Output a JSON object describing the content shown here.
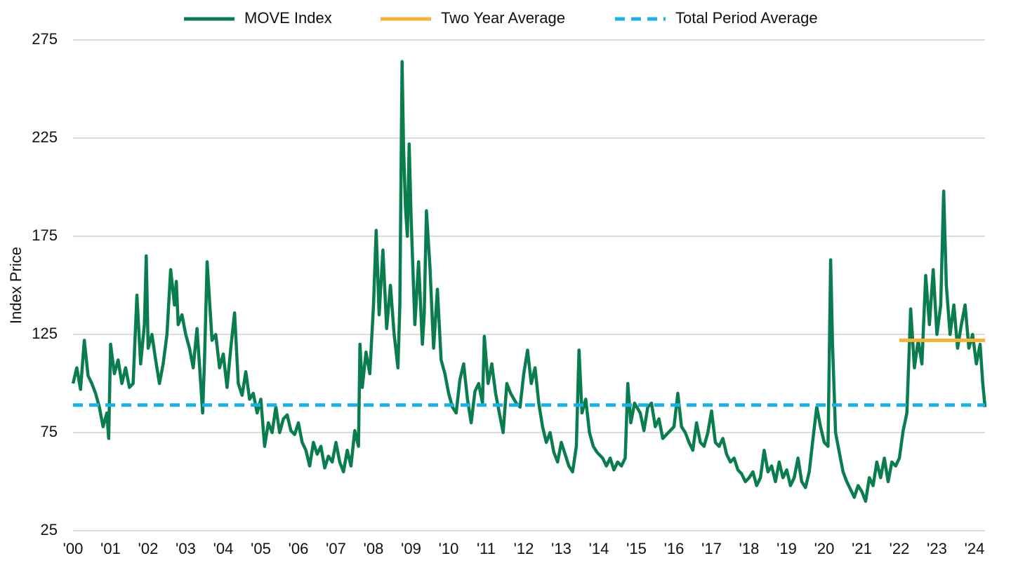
{
  "chart_data": {
    "type": "line",
    "y_label": "Index Price",
    "xlim": [
      2000,
      2024.28
    ],
    "xticks": [
      {
        "value": 2000,
        "label": "'00"
      },
      {
        "value": 2001,
        "label": "'01"
      },
      {
        "value": 2002,
        "label": "'02"
      },
      {
        "value": 2003,
        "label": "'03"
      },
      {
        "value": 2004,
        "label": "'04"
      },
      {
        "value": 2005,
        "label": "'05"
      },
      {
        "value": 2006,
        "label": "'06"
      },
      {
        "value": 2007,
        "label": "'07"
      },
      {
        "value": 2008,
        "label": "'08"
      },
      {
        "value": 2009,
        "label": "'09"
      },
      {
        "value": 2010,
        "label": "'10"
      },
      {
        "value": 2011,
        "label": "'11"
      },
      {
        "value": 2012,
        "label": "'12"
      },
      {
        "value": 2013,
        "label": "'13"
      },
      {
        "value": 2014,
        "label": "'14"
      },
      {
        "value": 2015,
        "label": "'15"
      },
      {
        "value": 2016,
        "label": "'16"
      },
      {
        "value": 2017,
        "label": "'17"
      },
      {
        "value": 2018,
        "label": "'18"
      },
      {
        "value": 2019,
        "label": "'19"
      },
      {
        "value": 2020,
        "label": "'20"
      },
      {
        "value": 2021,
        "label": "'21"
      },
      {
        "value": 2022,
        "label": "'22"
      },
      {
        "value": 2023,
        "label": "'23"
      },
      {
        "value": 2024,
        "label": "'24"
      }
    ],
    "ylim": [
      25,
      275
    ],
    "yticks": [
      25,
      75,
      125,
      175,
      225,
      275
    ],
    "grid": true,
    "legend": "top",
    "series": [
      {
        "name": "MOVE Index",
        "color": "#0a7d4f",
        "dashed": false,
        "x": [
          2000.0,
          2000.1,
          2000.2,
          2000.3,
          2000.4,
          2000.5,
          2000.6,
          2000.7,
          2000.8,
          2000.9,
          2000.95,
          2001.0,
          2001.1,
          2001.2,
          2001.3,
          2001.4,
          2001.5,
          2001.6,
          2001.7,
          2001.8,
          2001.9,
          2001.95,
          2002.0,
          2002.1,
          2002.2,
          2002.3,
          2002.4,
          2002.5,
          2002.6,
          2002.7,
          2002.75,
          2002.8,
          2002.9,
          2003.0,
          2003.1,
          2003.2,
          2003.3,
          2003.4,
          2003.45,
          2003.5,
          2003.57,
          2003.7,
          2003.8,
          2003.9,
          2004.0,
          2004.1,
          2004.2,
          2004.3,
          2004.4,
          2004.5,
          2004.6,
          2004.7,
          2004.8,
          2004.9,
          2005.0,
          2005.1,
          2005.2,
          2005.3,
          2005.4,
          2005.5,
          2005.6,
          2005.7,
          2005.8,
          2005.9,
          2006.0,
          2006.1,
          2006.2,
          2006.3,
          2006.4,
          2006.5,
          2006.6,
          2006.7,
          2006.8,
          2006.9,
          2007.0,
          2007.1,
          2007.2,
          2007.3,
          2007.4,
          2007.5,
          2007.6,
          2007.64,
          2007.7,
          2007.8,
          2007.9,
          2008.0,
          2008.07,
          2008.15,
          2008.25,
          2008.35,
          2008.45,
          2008.55,
          2008.65,
          2008.7,
          2008.76,
          2008.8,
          2008.85,
          2008.9,
          2008.95,
          2009.0,
          2009.1,
          2009.2,
          2009.3,
          2009.35,
          2009.41,
          2009.5,
          2009.6,
          2009.7,
          2009.8,
          2009.9,
          2010.0,
          2010.1,
          2010.2,
          2010.3,
          2010.4,
          2010.5,
          2010.6,
          2010.7,
          2010.8,
          2010.9,
          2010.95,
          2011.05,
          2011.15,
          2011.25,
          2011.35,
          2011.45,
          2011.55,
          2011.65,
          2011.8,
          2011.9,
          2012.0,
          2012.1,
          2012.2,
          2012.3,
          2012.4,
          2012.5,
          2012.6,
          2012.7,
          2012.8,
          2012.9,
          2013.0,
          2013.1,
          2013.2,
          2013.3,
          2013.4,
          2013.47,
          2013.55,
          2013.65,
          2013.75,
          2013.85,
          2013.95,
          2014.1,
          2014.2,
          2014.3,
          2014.4,
          2014.5,
          2014.6,
          2014.7,
          2014.77,
          2014.85,
          2014.95,
          2015.1,
          2015.2,
          2015.3,
          2015.4,
          2015.5,
          2015.6,
          2015.7,
          2015.8,
          2015.9,
          2016.0,
          2016.1,
          2016.2,
          2016.3,
          2016.4,
          2016.5,
          2016.6,
          2016.7,
          2016.8,
          2016.9,
          2017.0,
          2017.1,
          2017.2,
          2017.3,
          2017.4,
          2017.5,
          2017.6,
          2017.7,
          2017.8,
          2017.9,
          2018.0,
          2018.1,
          2018.2,
          2018.3,
          2018.4,
          2018.5,
          2018.6,
          2018.7,
          2018.8,
          2018.9,
          2019.0,
          2019.1,
          2019.2,
          2019.3,
          2019.4,
          2019.5,
          2019.6,
          2019.7,
          2019.8,
          2019.9,
          2020.0,
          2020.1,
          2020.17,
          2020.22,
          2020.3,
          2020.4,
          2020.5,
          2020.6,
          2020.7,
          2020.8,
          2020.9,
          2021.0,
          2021.1,
          2021.2,
          2021.3,
          2021.4,
          2021.5,
          2021.6,
          2021.7,
          2021.8,
          2021.9,
          2022.0,
          2022.1,
          2022.2,
          2022.3,
          2022.4,
          2022.5,
          2022.6,
          2022.7,
          2022.8,
          2022.9,
          2023.0,
          2023.1,
          2023.18,
          2023.25,
          2023.35,
          2023.45,
          2023.55,
          2023.65,
          2023.75,
          2023.85,
          2023.95,
          2024.05,
          2024.15,
          2024.22,
          2024.28
        ],
        "values": [
          100,
          108,
          97,
          122,
          104,
          100,
          95,
          88,
          78,
          85,
          72,
          120,
          105,
          112,
          100,
          108,
          98,
          100,
          145,
          110,
          130,
          165,
          118,
          125,
          112,
          100,
          110,
          125,
          158,
          140,
          152,
          130,
          135,
          125,
          118,
          108,
          128,
          100,
          85,
          112,
          162,
          122,
          125,
          108,
          115,
          98,
          118,
          136,
          100,
          94,
          106,
          92,
          95,
          85,
          92,
          68,
          80,
          75,
          88,
          75,
          82,
          84,
          76,
          74,
          80,
          70,
          66,
          58,
          70,
          64,
          68,
          57,
          63,
          60,
          70,
          60,
          55,
          66,
          58,
          76,
          68,
          120,
          98,
          116,
          105,
          140,
          178,
          135,
          168,
          128,
          150,
          125,
          108,
          140,
          264,
          220,
          190,
          175,
          222,
          185,
          130,
          162,
          120,
          135,
          188,
          160,
          118,
          148,
          112,
          105,
          95,
          88,
          85,
          102,
          110,
          92,
          80,
          96,
          100,
          90,
          124,
          100,
          110,
          95,
          85,
          75,
          100,
          95,
          90,
          88,
          105,
          117,
          100,
          108,
          90,
          78,
          70,
          75,
          65,
          60,
          70,
          64,
          58,
          55,
          68,
          117,
          85,
          92,
          75,
          68,
          65,
          62,
          58,
          62,
          56,
          60,
          58,
          62,
          100,
          80,
          90,
          85,
          76,
          88,
          90,
          78,
          82,
          72,
          74,
          76,
          78,
          95,
          78,
          75,
          70,
          66,
          80,
          70,
          68,
          75,
          86,
          70,
          68,
          72,
          64,
          60,
          62,
          56,
          54,
          50,
          52,
          55,
          48,
          52,
          66,
          55,
          58,
          50,
          60,
          52,
          56,
          48,
          52,
          62,
          50,
          47,
          55,
          72,
          88,
          78,
          70,
          68,
          163,
          120,
          75,
          65,
          55,
          50,
          46,
          42,
          48,
          45,
          40,
          52,
          48,
          60,
          52,
          62,
          50,
          60,
          58,
          62,
          76,
          85,
          138,
          108,
          122,
          110,
          155,
          130,
          158,
          125,
          140,
          198,
          150,
          125,
          140,
          118,
          130,
          140,
          118,
          125,
          110,
          120,
          100,
          88
        ]
      },
      {
        "name": "Two Year Average",
        "color": "#f5b335",
        "dashed": false,
        "x": [
          2022.0,
          2024.28
        ],
        "values": [
          122,
          122
        ]
      },
      {
        "name": "Total Period Average",
        "color": "#1ab0e8",
        "dashed": true,
        "x": [
          2000.0,
          2024.28
        ],
        "values": [
          89,
          89
        ]
      }
    ]
  }
}
